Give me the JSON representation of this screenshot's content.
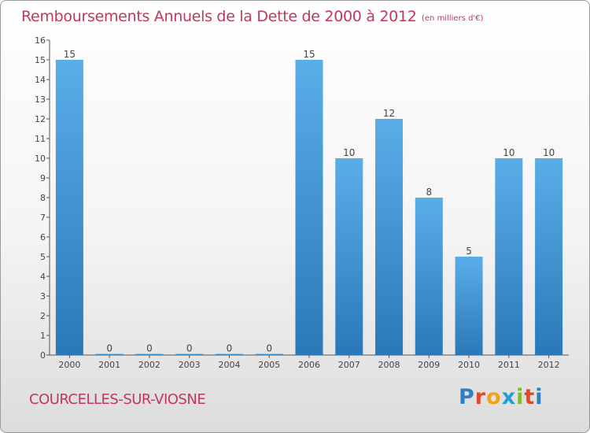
{
  "header": {
    "title": "Remboursements Annuels de la Dette de 2000 à 2012",
    "unit": "(en milliers d'€)"
  },
  "footer": {
    "commune": "COURCELLES-SUR-VIOSNE",
    "logo_letters": [
      "P",
      "r",
      "o",
      "x",
      "i",
      "t",
      "i"
    ],
    "logo_colors": [
      "#2d7fc1",
      "#e34a2a",
      "#f0a21b",
      "#1e9fd5",
      "#7bbd2c",
      "#e34a2a",
      "#2d7fc1"
    ]
  },
  "chart_data": {
    "type": "bar",
    "categories": [
      "2000",
      "2001",
      "2002",
      "2003",
      "2004",
      "2005",
      "2006",
      "2007",
      "2008",
      "2009",
      "2010",
      "2011",
      "2012"
    ],
    "values": [
      15,
      0,
      0,
      0,
      0,
      0,
      15,
      10,
      12,
      8,
      5,
      10,
      10
    ],
    "ylim": [
      0,
      16
    ],
    "yticks": [
      "0",
      "1",
      "2",
      "3",
      "4",
      "5",
      "6",
      "7",
      "8",
      "9",
      "10",
      "11",
      "12",
      "13",
      "14",
      "15",
      "16"
    ],
    "grid": false,
    "colors": {
      "bar_light": "#5aaee8",
      "bar_dark": "#2a78b8",
      "label": "#444444",
      "axis": "#555555"
    }
  }
}
